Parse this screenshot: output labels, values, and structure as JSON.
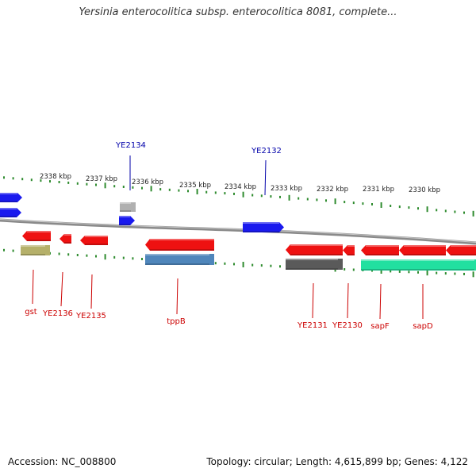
{
  "title": "Yersinia enterocolitica subsp. enterocolitica 8081, complete...",
  "footer": {
    "accession": "Accession: NC_008800",
    "topology": "Topology: circular; Length: 4,615,899 bp; Genes: 4,122"
  },
  "colors": {
    "backbone": "#8a8a8a",
    "ticks": "#2e8b2e",
    "top_label": "#0000aa",
    "bottom_label": "#cc0000",
    "forward_gene": "#1a1aee",
    "forward_pseudo": "#b0b0b0",
    "reverse_gene": "#ee1111",
    "olive_feature": "#b5b06a",
    "steel_feature": "#4f86bb",
    "grey_feature": "#5a5a5a",
    "teal_feature": "#22e0a0"
  },
  "ruler_labels": [
    "2338 kbp",
    "2337 kbp",
    "2336 kbp",
    "2335 kbp",
    "2334 kbp",
    "2333 kbp",
    "2332 kbp",
    "2331 kbp",
    "2330 kbp"
  ],
  "top_gene_labels": [
    "YE2134",
    "YE2132"
  ],
  "bottom_gene_labels": [
    "gst",
    "YE2136",
    "YE2135",
    "tppB",
    "YE2131",
    "YE2130",
    "sapF",
    "sapD"
  ]
}
